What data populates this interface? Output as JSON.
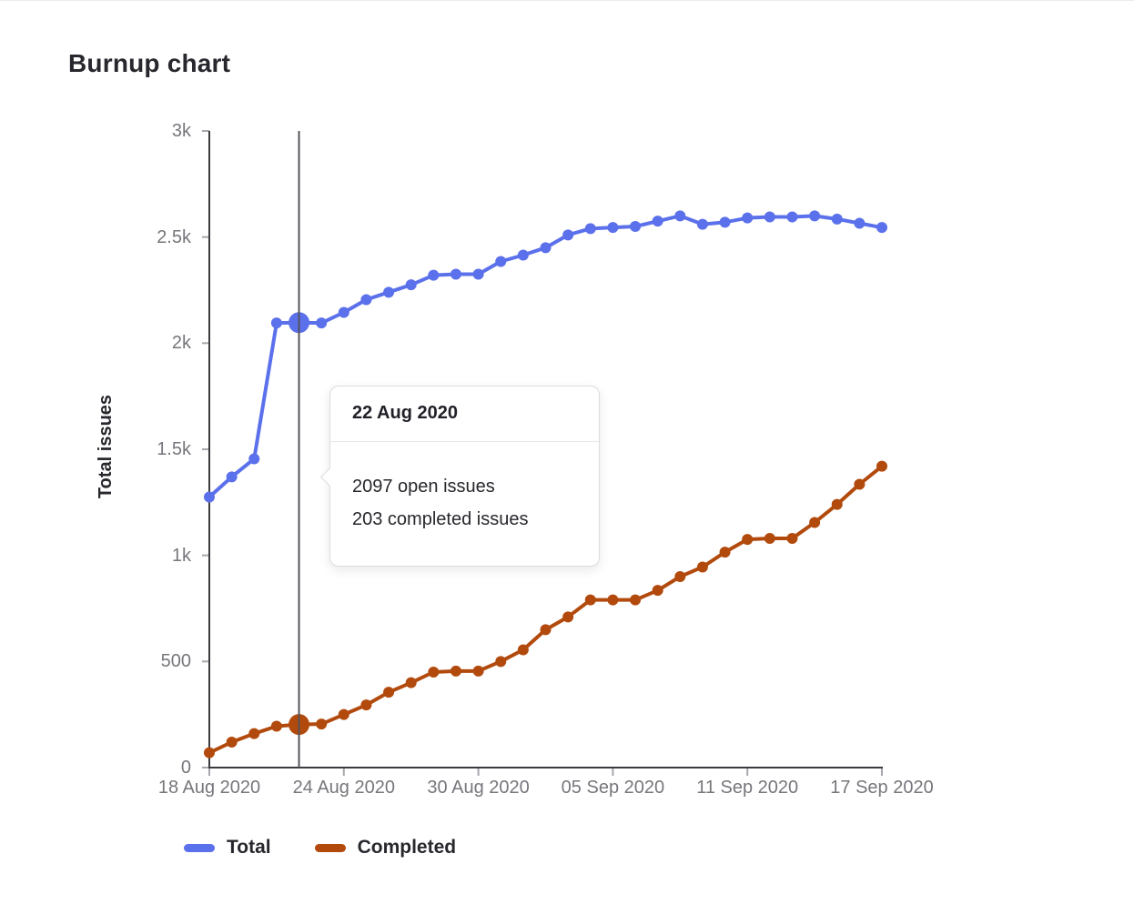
{
  "page": {
    "title": "Burnup chart"
  },
  "colors": {
    "total": "#5b70eb",
    "completed": "#b24a0d",
    "axis": "#3a3a3f",
    "tick": "#a7a7ad",
    "label": "#76767c",
    "hover_line": "#54545b",
    "tooltip_border": "#dcdcde"
  },
  "y_axis": {
    "title": "Total issues",
    "ticks": [
      {
        "label": "3k",
        "value": 3000
      },
      {
        "label": "2.5k",
        "value": 2500
      },
      {
        "label": "2k",
        "value": 2000
      },
      {
        "label": "1.5k",
        "value": 1500
      },
      {
        "label": "1k",
        "value": 1000
      },
      {
        "label": "500",
        "value": 500
      },
      {
        "label": "0",
        "value": 0
      }
    ]
  },
  "x_axis": {
    "ticks": [
      {
        "label": "18 Aug 2020",
        "index": 0
      },
      {
        "label": "24 Aug 2020",
        "index": 6
      },
      {
        "label": "30 Aug 2020",
        "index": 12
      },
      {
        "label": "05 Sep 2020",
        "index": 18
      },
      {
        "label": "11 Sep 2020",
        "index": 24
      },
      {
        "label": "17 Sep 2020",
        "index": 30
      }
    ]
  },
  "tooltip": {
    "date": "22 Aug 2020",
    "open_line": "2097 open issues",
    "completed_line": "203 completed issues"
  },
  "legend": [
    {
      "label": "Total",
      "color": "#5b70eb"
    },
    {
      "label": "Completed",
      "color": "#b24a0d"
    }
  ],
  "chart_data": {
    "type": "line",
    "title": "Burnup chart",
    "xlabel": "",
    "ylabel": "Total issues",
    "ylim": [
      0,
      3000
    ],
    "grid": false,
    "legend_position": "bottom",
    "hover_index": 4,
    "x": [
      "18 Aug 2020",
      "19 Aug 2020",
      "20 Aug 2020",
      "21 Aug 2020",
      "22 Aug 2020",
      "23 Aug 2020",
      "24 Aug 2020",
      "25 Aug 2020",
      "26 Aug 2020",
      "27 Aug 2020",
      "28 Aug 2020",
      "29 Aug 2020",
      "30 Aug 2020",
      "31 Aug 2020",
      "01 Sep 2020",
      "02 Sep 2020",
      "03 Sep 2020",
      "04 Sep 2020",
      "05 Sep 2020",
      "06 Sep 2020",
      "07 Sep 2020",
      "08 Sep 2020",
      "09 Sep 2020",
      "10 Sep 2020",
      "11 Sep 2020",
      "12 Sep 2020",
      "13 Sep 2020",
      "14 Sep 2020",
      "15 Sep 2020",
      "16 Sep 2020",
      "17 Sep 2020"
    ],
    "series": [
      {
        "name": "Total",
        "color": "#5b70eb",
        "values": [
          1275,
          1370,
          1455,
          2095,
          2097,
          2095,
          2145,
          2205,
          2240,
          2275,
          2320,
          2325,
          2325,
          2385,
          2415,
          2450,
          2510,
          2540,
          2545,
          2550,
          2575,
          2600,
          2560,
          2570,
          2590,
          2595,
          2595,
          2600,
          2585,
          2565,
          2545
        ]
      },
      {
        "name": "Completed",
        "color": "#b24a0d",
        "values": [
          70,
          120,
          160,
          195,
          203,
          205,
          250,
          295,
          355,
          400,
          450,
          455,
          455,
          500,
          555,
          650,
          710,
          790,
          790,
          790,
          835,
          900,
          945,
          1015,
          1075,
          1080,
          1080,
          1155,
          1240,
          1335,
          1420
        ]
      }
    ]
  }
}
